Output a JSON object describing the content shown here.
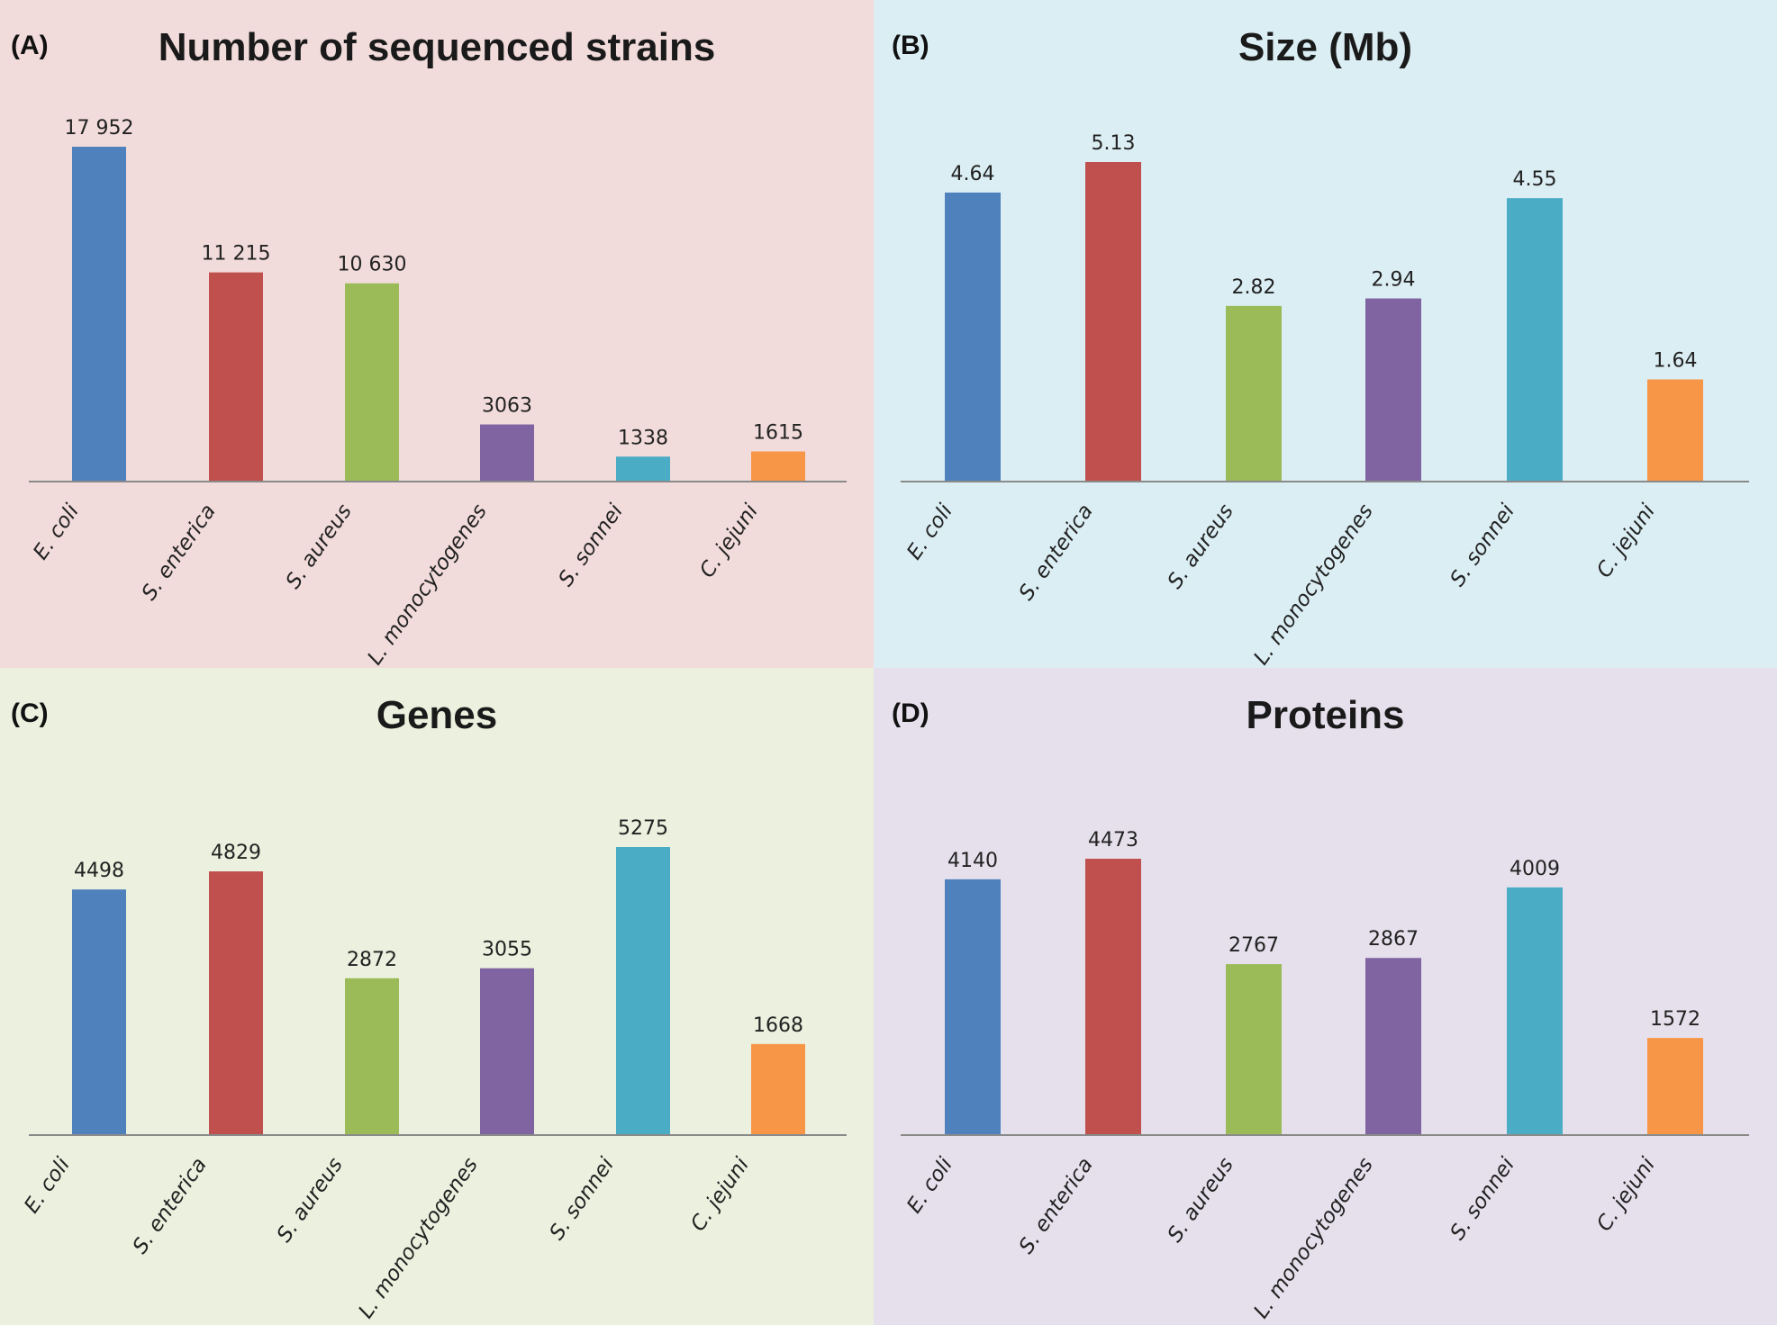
{
  "figure": {
    "panels": [
      {
        "panel_label": "(A)",
        "title": "Number of sequenced strains",
        "background": "#f2dcdb"
      },
      {
        "panel_label": "(B)",
        "title": "Size (Mb)",
        "background": "#dbeef4"
      },
      {
        "panel_label": "(C)",
        "title": "Genes",
        "background": "#ebf1de"
      },
      {
        "panel_label": "(D)",
        "title": "Proteins",
        "background": "#e5e0ec"
      }
    ]
  },
  "chart_data": [
    {
      "type": "bar",
      "title": "Number of sequenced strains",
      "categories": [
        "E. coli",
        "S. enterica",
        "S. aureus",
        "L. monocytogenes",
        "S. sonnei",
        "C. jejuni"
      ],
      "values": [
        17952,
        11215,
        10630,
        3063,
        1338,
        1615
      ],
      "value_labels": [
        "17 952",
        "11 215",
        "10 630",
        "3063",
        "1338",
        "1615"
      ],
      "colors": [
        "#4f81bd",
        "#c0504d",
        "#9bbb59",
        "#8064a2",
        "#4bacc6",
        "#f79646"
      ],
      "ylim": [
        0,
        18000
      ],
      "grid": false,
      "xlabel": "",
      "ylabel": ""
    },
    {
      "type": "bar",
      "title": "Size (Mb)",
      "categories": [
        "E. coli",
        "S. enterica",
        "S. aureus",
        "L. monocytogenes",
        "S. sonnei",
        "C. jejuni"
      ],
      "values": [
        4.64,
        5.13,
        2.82,
        2.94,
        4.55,
        1.64
      ],
      "value_labels": [
        "4.64",
        "5.13",
        "2.82",
        "2.94",
        "4.55",
        "1.64"
      ],
      "colors": [
        "#4f81bd",
        "#c0504d",
        "#9bbb59",
        "#8064a2",
        "#4bacc6",
        "#f79646"
      ],
      "ylim": [
        0,
        5.6
      ],
      "grid": false,
      "xlabel": "",
      "ylabel": ""
    },
    {
      "type": "bar",
      "title": "Genes",
      "categories": [
        "E. coli",
        "S. enterica",
        "S. aureus",
        "L. monocytogenes",
        "S. sonnei",
        "C. jejuni"
      ],
      "values": [
        4498,
        4829,
        2872,
        3055,
        5275,
        1668
      ],
      "value_labels": [
        "4498",
        "4829",
        "2872",
        "3055",
        "5275",
        "1668"
      ],
      "colors": [
        "#4f81bd",
        "#c0504d",
        "#9bbb59",
        "#8064a2",
        "#4bacc6",
        "#f79646"
      ],
      "ylim": [
        0,
        6000
      ],
      "grid": false,
      "xlabel": "",
      "ylabel": ""
    },
    {
      "type": "bar",
      "title": "Proteins",
      "categories": [
        "E. coli",
        "S. enterica",
        "S. aureus",
        "L. monocytogenes",
        "S. sonnei",
        "C. jejuni"
      ],
      "values": [
        4140,
        4473,
        2767,
        2867,
        4009,
        1572
      ],
      "value_labels": [
        "4140",
        "4473",
        "2767",
        "2867",
        "4009",
        "1572"
      ],
      "colors": [
        "#4f81bd",
        "#c0504d",
        "#9bbb59",
        "#8064a2",
        "#4bacc6",
        "#f79646"
      ],
      "ylim": [
        0,
        5000
      ],
      "grid": false,
      "xlabel": "",
      "ylabel": ""
    }
  ]
}
